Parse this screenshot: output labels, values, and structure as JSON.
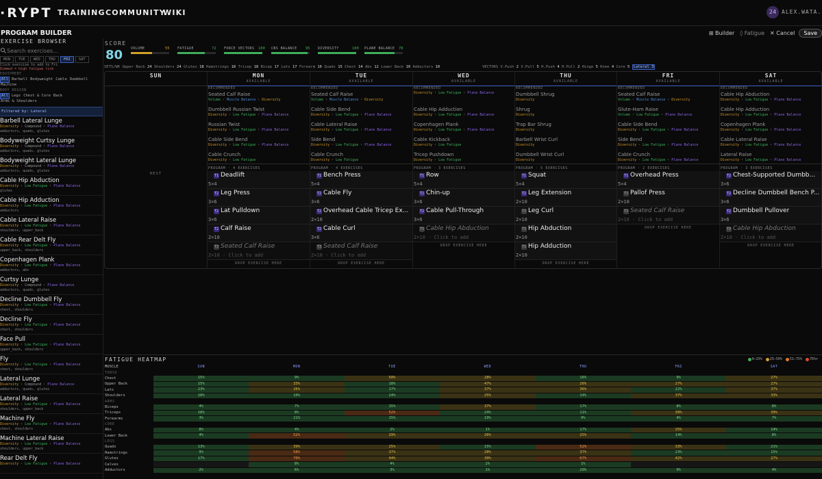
{
  "nav": {
    "logo": "·RYPT",
    "links": [
      "TRAINING",
      "COMMUNITY",
      "WIKI"
    ],
    "avatar": "24",
    "username": "ALEX.WATA..."
  },
  "header": {
    "title": "PROGRAM BUILDER",
    "builder": "⊞ Builder",
    "fatigue": "◊ Fatigue",
    "cancel": "✕ Cancel",
    "save": "Save"
  },
  "sidebar": {
    "title": "EXERCISE BROWSER",
    "search_placeholder": "Search exercises...",
    "days": [
      "MON",
      "TUE",
      "WED",
      "THU",
      "FRI",
      "SAT"
    ],
    "active_day": "FRI",
    "hint": "Click exercise to add to Fri",
    "hint2": "Dimmed = high fatigue risk",
    "equipment_label": "EQUIPMENT",
    "equipment": [
      "All",
      "Barbell",
      "Bodyweight",
      "Cable",
      "Dumbbell"
    ],
    "equipment2": "Machine",
    "body_label": "BODY REGION",
    "body": [
      "All",
      "Legs",
      "Chest & Core",
      "Back"
    ],
    "body2": "Arms & Shoulders",
    "filter": "Filtered by: Lateral",
    "exercises": [
      {
        "name": "Barbell Lateral Lunge",
        "tags": [
          "Diversity",
          "Compound",
          "Plane Balance"
        ],
        "muscles": "adductors, quads, glutes"
      },
      {
        "name": "Bodyweight Curtsy Lunge",
        "tags": [
          "Diversity",
          "Compound",
          "Plane Balance"
        ],
        "muscles": "adductors, quads, glutes"
      },
      {
        "name": "Bodyweight Lateral Lunge",
        "tags": [
          "Diversity",
          "Compound",
          "Plane Balance"
        ],
        "muscles": "adductors, quads, glutes"
      },
      {
        "name": "Cable Hip Abduction",
        "tags": [
          "Diversity",
          "Low Fatigue",
          "Plane Balance"
        ],
        "muscles": "glutes"
      },
      {
        "name": "Cable Hip Adduction",
        "tags": [
          "Diversity",
          "Low Fatigue",
          "Plane Balance"
        ],
        "muscles": "adductors"
      },
      {
        "name": "Cable Lateral Raise",
        "tags": [
          "Diversity",
          "Low Fatigue",
          "Plane Balance"
        ],
        "muscles": "shoulders, upper_back"
      },
      {
        "name": "Cable Rear Delt Fly",
        "tags": [
          "Diversity",
          "Low Fatigue",
          "Plane Balance"
        ],
        "muscles": "upper_back, shoulders"
      },
      {
        "name": "Copenhagen Plank",
        "tags": [
          "Diversity",
          "Low Fatigue",
          "Plane Balance"
        ],
        "muscles": "adductors, abs"
      },
      {
        "name": "Curtsy Lunge",
        "tags": [
          "Diversity",
          "Compound",
          "Plane Balance"
        ],
        "muscles": "adductors, quads, glutes"
      },
      {
        "name": "Decline Dumbbell Fly",
        "tags": [
          "Diversity",
          "Low Fatigue",
          "Plane Balance"
        ],
        "muscles": "chest, shoulders"
      },
      {
        "name": "Decline Fly",
        "tags": [
          "Diversity",
          "Low Fatigue",
          "Plane Balance"
        ],
        "muscles": "chest, shoulders"
      },
      {
        "name": "Face Pull",
        "tags": [
          "Diversity",
          "Low Fatigue",
          "Plane Balance"
        ],
        "muscles": "upper_back, shoulders"
      },
      {
        "name": "Fly",
        "tags": [
          "Diversity",
          "Low Fatigue",
          "Plane Balance"
        ],
        "muscles": "chest, shoulders"
      },
      {
        "name": "Lateral Lunge",
        "tags": [
          "Diversity",
          "Compound",
          "Plane Balance"
        ],
        "muscles": "adductors, quads, glutes"
      },
      {
        "name": "Lateral Raise",
        "tags": [
          "Diversity",
          "Low Fatigue",
          "Plane Balance"
        ],
        "muscles": "shoulders, upper_back"
      },
      {
        "name": "Machine Fly",
        "tags": [
          "Diversity",
          "Low Fatigue",
          "Plane Balance"
        ],
        "muscles": "chest, shoulders"
      },
      {
        "name": "Machine Lateral Raise",
        "tags": [
          "Diversity",
          "Low Fatigue",
          "Plane Balance"
        ],
        "muscles": "shoulders, upper_back"
      },
      {
        "name": "Rear Delt Fly",
        "tags": [
          "Diversity",
          "Low Fatigue",
          "Plane Balance"
        ],
        "muscles": ""
      }
    ]
  },
  "score": {
    "label": "SCORE",
    "value": "80",
    "metrics": [
      {
        "label": "VOLUME",
        "value": "55",
        "level": 0.55,
        "color": "#d4a12a"
      },
      {
        "label": "FATIGUE",
        "value": "72",
        "level": 0.72,
        "color": "#3fae5b"
      },
      {
        "label": "FORCE VECTORS",
        "value": "100",
        "level": 1.0,
        "color": "#3fae5b"
      },
      {
        "label": "CNS BALANCE",
        "value": "95",
        "level": 0.95,
        "color": "#3fae5b"
      },
      {
        "label": "DIVERSITY",
        "value": "100",
        "level": 1.0,
        "color": "#3fae5b"
      },
      {
        "label": "PLANE BALANCE",
        "value": "78",
        "level": 0.78,
        "color": "#3fae5b"
      }
    ]
  },
  "sets_label": "SETS/WK",
  "sets": [
    [
      "Upper Back",
      "24"
    ],
    [
      "Shoulders",
      "24"
    ],
    [
      "Glutes",
      "18"
    ],
    [
      "Hamstrings",
      "18"
    ],
    [
      "Tricep",
      "18"
    ],
    [
      "Bicep",
      "17"
    ],
    [
      "Lats",
      "17"
    ],
    [
      "Forearm",
      "16"
    ],
    [
      "Quads",
      "15"
    ],
    [
      "Chest",
      "14"
    ],
    [
      "Abs",
      "12"
    ],
    [
      "Lower Back",
      "10"
    ],
    [
      "Adductors",
      "10"
    ]
  ],
  "vectors_label": "VECTORS",
  "vectors": [
    [
      "V.Push",
      "2"
    ],
    [
      "V.Pull",
      "5"
    ],
    [
      "H.Push",
      "4"
    ],
    [
      "H.Pull",
      "2"
    ],
    [
      "Hinge",
      "5"
    ],
    [
      "Knee",
      "4"
    ],
    [
      "Core",
      "5"
    ],
    [
      "Lateral",
      "3"
    ]
  ],
  "week": {
    "available": "AVAILABLE",
    "rest": "REST",
    "recommended": "RECOMMENDED",
    "drop": "DROP EXERCISE HERE",
    "click_add": "Click to add",
    "days": [
      {
        "name": "SUN",
        "rest": true
      },
      {
        "name": "MON",
        "prog": "PROGRAM · 4 EXERCISES",
        "rec": [
          {
            "name": "Seated Calf Raise",
            "tags": [
              "Volume",
              "Muscle Balance",
              "Diversity"
            ]
          },
          {
            "name": "Dumbbell Russian Twist",
            "tags": [
              "Diversity",
              "Low Fatigue",
              "Plane Balance"
            ]
          },
          {
            "name": "Russian Twist",
            "tags": [
              "Diversity",
              "Low Fatigue",
              "Plane Balance"
            ]
          },
          {
            "name": "Cable Side Bend",
            "tags": [
              "Diversity",
              "Low Fatigue",
              "Plane Balance"
            ]
          },
          {
            "name": "Cable Crunch",
            "tags": [
              "Diversity",
              "Low Fatigue"
            ]
          }
        ],
        "ex": [
          {
            "tier": "T1",
            "name": "Deadlift",
            "sets": "5×4"
          },
          {
            "tier": "T2",
            "name": "Leg Press",
            "sets": "3×6"
          },
          {
            "tier": "T2",
            "name": "Lat Pulldown",
            "sets": "3×6"
          },
          {
            "tier": "T2",
            "name": "Calf Raise",
            "sets": "2×10"
          },
          {
            "tier": "T3",
            "name": "Seated Calf Raise",
            "sets": "2×10 · ",
            "ghost": true
          }
        ]
      },
      {
        "name": "TUE",
        "prog": "PROGRAM · 4 EXERCISES",
        "rec": [
          {
            "name": "Seated Calf Raise",
            "tags": [
              "Volume",
              "Muscle Balance",
              "Diversity"
            ]
          },
          {
            "name": "Cable Side Bend",
            "tags": [
              "Diversity",
              "Low Fatigue",
              "Plane Balance"
            ]
          },
          {
            "name": "Cable Lateral Raise",
            "tags": [
              "Diversity",
              "Low Fatigue",
              "Plane Balance"
            ]
          },
          {
            "name": "Side Bend",
            "tags": [
              "Diversity",
              "Low Fatigue",
              "Plane Balance"
            ]
          },
          {
            "name": "Cable Crunch",
            "tags": [
              "Diversity",
              "Low Fatigue"
            ]
          },
          {
            "name": "Crunch",
            "tags": [
              "Diversity",
              "Low Fatigue"
            ]
          }
        ],
        "ex": [
          {
            "tier": "T1",
            "name": "Bench Press",
            "sets": "5×4"
          },
          {
            "tier": "T2",
            "name": "Cable Fly",
            "sets": "3×6"
          },
          {
            "tier": "T2",
            "name": "Overhead Cable Tricep Ex...",
            "sets": "2×10"
          },
          {
            "tier": "T2",
            "name": "Cable Curl",
            "sets": "3×6"
          },
          {
            "tier": "T3",
            "name": "Seated Calf Raise",
            "sets": "2×10 · ",
            "ghost": true
          }
        ]
      },
      {
        "name": "WED",
        "prog": "PROGRAM · 3 EXERCISES",
        "rec": [
          {
            "name": "",
            "tags": [
              "Diversity",
              "Low Fatigue",
              "Plane Balance"
            ]
          },
          {
            "name": "Cable Hip Adduction",
            "tags": [
              "Diversity",
              "Low Fatigue",
              "Plane Balance"
            ]
          },
          {
            "name": "Copenhagen Plank",
            "tags": [
              "Diversity",
              "Low Fatigue",
              "Plane Balance"
            ]
          },
          {
            "name": "Cable Kickback",
            "tags": [
              "Diversity",
              "Low Fatigue"
            ]
          },
          {
            "name": "Tricep Pushdown",
            "tags": [
              "Diversity",
              "Low Fatigue"
            ]
          },
          {
            "name": "Cable Lateral Raise",
            "tags": []
          }
        ],
        "ex": [
          {
            "tier": "T1",
            "name": "Row",
            "sets": "5×4"
          },
          {
            "tier": "T2",
            "name": "Chin-up",
            "sets": "3×6"
          },
          {
            "tier": "T2",
            "name": "Cable Pull-Through",
            "sets": "3×6"
          },
          {
            "tier": "T3",
            "name": "Cable Hip Abduction",
            "sets": "2×10 · ",
            "ghost": true
          }
        ]
      },
      {
        "name": "THU",
        "prog": "PROGRAM · 5 EXERCISES",
        "rec": [
          {
            "name": "Dumbbell Shrug",
            "tags": [
              "Diversity"
            ]
          },
          {
            "name": "Shrug",
            "tags": [
              "Diversity"
            ]
          },
          {
            "name": "Trap Bar Shrug",
            "tags": [
              "Diversity"
            ]
          },
          {
            "name": "Barbell Wrist Curl",
            "tags": [
              "Diversity"
            ]
          },
          {
            "name": "Dumbbell Wrist Curl",
            "tags": [
              "Diversity"
            ]
          }
        ],
        "ex": [
          {
            "tier": "T1",
            "name": "Squat",
            "sets": "5×4"
          },
          {
            "tier": "T2",
            "name": "Leg Extension",
            "sets": "2×10"
          },
          {
            "tier": "T3",
            "name": "Leg Curl",
            "sets": "2×10"
          },
          {
            "tier": "T3",
            "name": "Hip Abduction",
            "sets": "2×10"
          },
          {
            "tier": "T3",
            "name": "Hip Adduction",
            "sets": "2×10"
          }
        ]
      },
      {
        "name": "FRI",
        "prog": "PROGRAM · 2 EXERCISES",
        "rec": [
          {
            "name": "Seated Calf Raise",
            "tags": [
              "Volume",
              "Muscle Balance",
              "Diversity"
            ]
          },
          {
            "name": "Glute-Ham Raise",
            "tags": [
              "Volume",
              "Low Fatigue",
              "Plane Balance"
            ]
          },
          {
            "name": "Cable Side Bend",
            "tags": [
              "Diversity",
              "Low Fatigue",
              "Plane Balance"
            ]
          },
          {
            "name": "Side Bend",
            "tags": [
              "Diversity",
              "Low Fatigue",
              "Plane Balance"
            ]
          },
          {
            "name": "Cable Crunch",
            "tags": [
              "Diversity",
              "Low Fatigue",
              "Plane Balance"
            ]
          }
        ],
        "ex": [
          {
            "tier": "T1",
            "name": "Overhead Press",
            "sets": "5×4"
          },
          {
            "tier": "T3",
            "name": "Pallof Press",
            "sets": "2×10"
          },
          {
            "tier": "T3",
            "name": "Seated Calf Raise",
            "sets": "2×10 · ",
            "ghost": true
          }
        ]
      },
      {
        "name": "SAT",
        "prog": "PROGRAM · 3 EXERCISES",
        "rec": [
          {
            "name": "Cable Hip Abduction",
            "tags": [
              "Diversity",
              "Low Fatigue",
              "Plane Balance"
            ]
          },
          {
            "name": "Cable Hip Adduction",
            "tags": [
              "Diversity",
              "Low Fatigue",
              "Plane Balance"
            ]
          },
          {
            "name": "Copenhagen Plank",
            "tags": [
              "Diversity",
              "Low Fatigue",
              "Plane Balance"
            ]
          },
          {
            "name": "Cable Lateral Raise",
            "tags": [
              "Diversity",
              "Low Fatigue",
              "Plane Balance"
            ]
          },
          {
            "name": "Lateral Raise",
            "tags": [
              "Diversity",
              "Low Fatigue",
              "Plane Balance"
            ]
          }
        ],
        "ex": [
          {
            "tier": "T2",
            "name": "Chest-Supported Dumbb...",
            "sets": "3×6"
          },
          {
            "tier": "T2",
            "name": "Decline Dumbbell Bench P...",
            "sets": "3×6"
          },
          {
            "tier": "T2",
            "name": "Dumbbell Pullover",
            "sets": "3×6"
          },
          {
            "tier": "T3",
            "name": "Cable Hip Abduction",
            "sets": "2×10 · ",
            "ghost": true
          }
        ]
      }
    ]
  },
  "heatmap": {
    "title": "FATIGUE HEATMAP",
    "legend": [
      "0–25%",
      "25–50%",
      "51–75%",
      "76%+"
    ],
    "legend_colors": [
      "#3fae5b",
      "#d4a12a",
      "#e07a30",
      "#e04a30"
    ],
    "muscle_label": "MUSCLE",
    "days": [
      "SUN",
      "MON",
      "TUE",
      "WED",
      "THU",
      "FRI",
      "SAT"
    ],
    "groups": [
      {
        "name": "TORSO",
        "rows": [
          {
            "m": "Chest",
            "v": [
              "",
              "15%",
              "9%",
              "50%",
              "28%",
              "16%",
              "9%",
              "27%"
            ]
          },
          {
            "m": "Upper Back",
            "v": [
              "",
              "15%",
              "33%",
              "18%",
              "47%",
              "26%",
              "27%",
              "27%"
            ]
          },
          {
            "m": "Lats",
            "v": [
              "",
              "23%",
              "26%",
              "17%",
              "37%",
              "36%",
              "22%",
              "37%"
            ]
          },
          {
            "m": "Shoulders",
            "v": [
              "",
              "18%",
              "10%",
              "24%",
              "25%",
              "14%",
              "37%",
              "33%"
            ]
          }
        ]
      },
      {
        "name": "ARMS",
        "rows": [
          {
            "m": "Biceps",
            "v": [
              "",
              "4%",
              "7%",
              "15%",
              "37%",
              "17%",
              "8%",
              "8%"
            ]
          },
          {
            "m": "Triceps",
            "v": [
              "",
              "18%",
              "8%",
              "52%",
              "24%",
              "11%",
              "39%",
              "39%"
            ]
          },
          {
            "m": "Forearms",
            "v": [
              "",
              "3%",
              "21%",
              "15%",
              "19%",
              "9%",
              "4%",
              "7%"
            ]
          }
        ]
      },
      {
        "name": "CORE",
        "rows": [
          {
            "m": "Abs",
            "v": [
              "",
              "8%",
              "4%",
              "2%",
              "1%",
              "17%",
              "25%",
              "14%"
            ]
          },
          {
            "m": "Lower Back",
            "v": [
              "",
              "4%",
              "52%",
              "29%",
              "26%",
              "25%",
              "14%",
              "8%"
            ]
          }
        ]
      },
      {
        "name": "LEGS",
        "rows": [
          {
            "m": "Quads",
            "v": [
              "",
              "13%",
              "39%",
              "25%",
              "15%",
              "52%",
              "33%",
              "21%"
            ]
          },
          {
            "m": "Hamstrings",
            "v": [
              "",
              "9%",
              "58%",
              "37%",
              "28%",
              "37%",
              "23%",
              "15%"
            ]
          },
          {
            "m": "Glutes",
            "v": [
              "",
              "17%",
              "70%",
              "44%",
              "39%",
              "67%",
              "42%",
              "27%"
            ]
          },
          {
            "m": "Calves",
            "v": [
              "",
              "",
              "8%",
              "4%",
              "2%",
              "1%",
              "",
              ""
            ]
          },
          {
            "m": "Adductors",
            "v": [
              "",
              "2%",
              "6%",
              "3%",
              "1%",
              "20%",
              "9%",
              "4%"
            ]
          }
        ]
      }
    ]
  }
}
